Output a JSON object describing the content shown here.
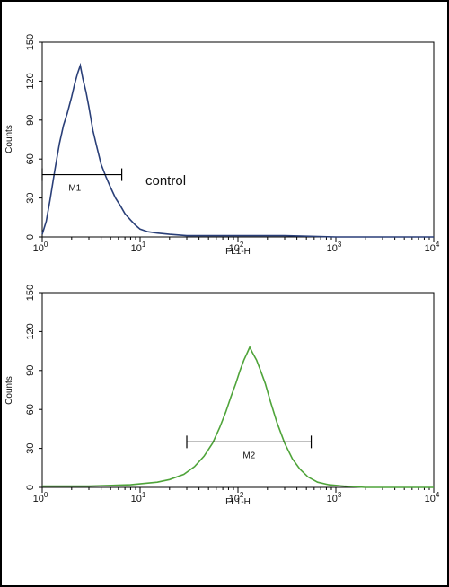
{
  "chart_data": [
    {
      "type": "line",
      "chart_name": "control-histogram",
      "xlabel": "FL1-H",
      "ylabel": "Counts",
      "xscale": "log",
      "xlim": [
        1,
        10000
      ],
      "ylim": [
        0,
        150
      ],
      "x_ticks": [
        {
          "base": "10",
          "exp": "0"
        },
        {
          "base": "10",
          "exp": "1"
        },
        {
          "base": "10",
          "exp": "2"
        },
        {
          "base": "10",
          "exp": "3"
        },
        {
          "base": "10",
          "exp": "4"
        }
      ],
      "y_ticks": [
        "0",
        "30",
        "60",
        "90",
        "120",
        "150"
      ],
      "color": "#2a3f78",
      "series": [
        {
          "x": [
            1.0,
            1.1,
            1.2,
            1.35,
            1.5,
            1.65,
            1.8,
            2.0,
            2.15,
            2.3,
            2.45,
            2.6,
            2.8,
            3.0,
            3.3,
            3.6,
            4.0,
            4.5,
            5.0,
            5.6,
            6.3,
            7.0,
            8.0,
            9.0,
            10.0,
            12.0,
            15.0,
            20.0,
            30.0,
            50.0,
            100.0,
            300.0,
            1000.0,
            10000.0
          ],
          "y": [
            2,
            12,
            28,
            52,
            72,
            86,
            95,
            108,
            118,
            126,
            132,
            122,
            112,
            100,
            82,
            70,
            56,
            46,
            38,
            30,
            24,
            18,
            13,
            9,
            6,
            4,
            3,
            2,
            1,
            1,
            1,
            1,
            0,
            0
          ]
        }
      ],
      "gate": {
        "label": "M1",
        "x_start": 1.0,
        "x_end": 6.5,
        "y": 48
      },
      "annotation": "control"
    },
    {
      "type": "line",
      "chart_name": "sample-histogram",
      "xlabel": "FL1-H",
      "ylabel": "Counts",
      "xscale": "log",
      "xlim": [
        1,
        10000
      ],
      "ylim": [
        0,
        150
      ],
      "x_ticks": [
        {
          "base": "10",
          "exp": "0"
        },
        {
          "base": "10",
          "exp": "1"
        },
        {
          "base": "10",
          "exp": "2"
        },
        {
          "base": "10",
          "exp": "3"
        },
        {
          "base": "10",
          "exp": "4"
        }
      ],
      "y_ticks": [
        "0",
        "30",
        "60",
        "90",
        "120",
        "150"
      ],
      "color": "#4fa43a",
      "series": [
        {
          "x": [
            1.0,
            3.0,
            8.0,
            15.0,
            20.0,
            28.0,
            36.0,
            45.0,
            55.0,
            65.0,
            75.0,
            85.0,
            95.0,
            105.0,
            115.0,
            125.0,
            132.0,
            140.0,
            155.0,
            170.0,
            190.0,
            215.0,
            250.0,
            300.0,
            360.0,
            430.0,
            520.0,
            650.0,
            850.0,
            1200.0,
            2000.0,
            10000.0
          ],
          "y": [
            1,
            1,
            2,
            4,
            6,
            10,
            16,
            24,
            34,
            46,
            58,
            70,
            80,
            90,
            98,
            104,
            108,
            104,
            98,
            90,
            80,
            66,
            50,
            34,
            22,
            14,
            8,
            4,
            2,
            1,
            0,
            0
          ]
        }
      ],
      "gate": {
        "label": "M2",
        "x_start": 30.0,
        "x_end": 560.0,
        "y": 35
      }
    }
  ]
}
